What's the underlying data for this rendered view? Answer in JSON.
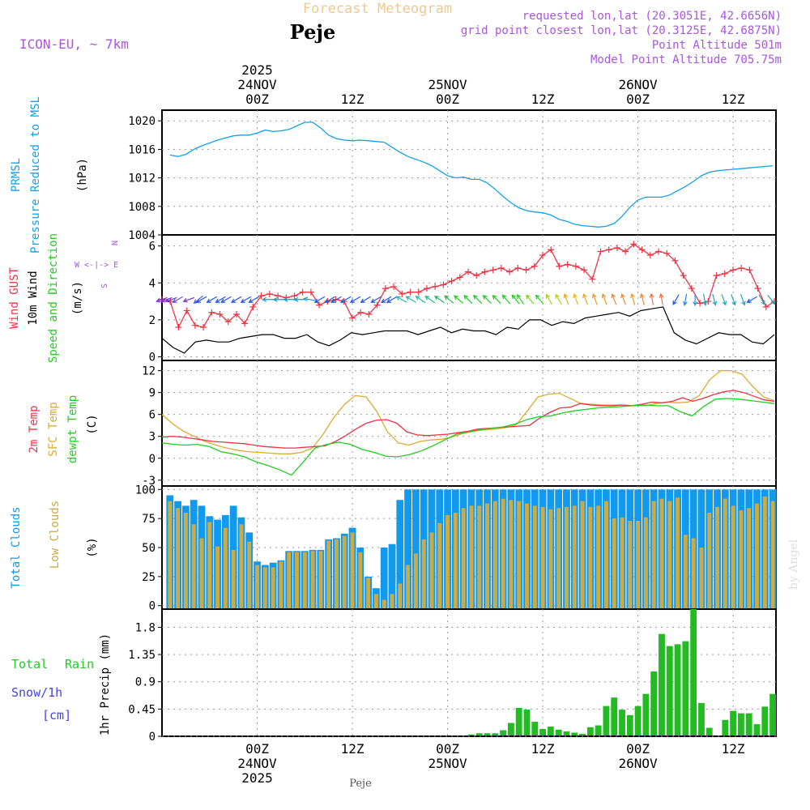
{
  "header": {
    "title": "Forecast Meteogram",
    "location": "Peje",
    "model": "ICON-EU, ~ 7km",
    "year": "2025",
    "info": [
      "requested lon,lat (20.3051E, 42.6656N)",
      "grid point closest lon,lat (20.3125E, 42.6875N)",
      "Point Altitude 501m",
      "Model Point Altitude 705.75m"
    ],
    "footer_location": "Peje",
    "credit": "by Angel"
  },
  "colors": {
    "pressure": "#11a0ee",
    "gust": "#ee3344",
    "wind": "#000000",
    "temp": "#ee3344",
    "sfc": "#ddaa33",
    "dew": "#22cc22",
    "total_cloud": "#1199ee",
    "low_cloud": "#ccaa44",
    "rain": "#22bb22",
    "label_purple": "#aa55dd",
    "title": "#f0c890"
  },
  "time_axis": {
    "ticks": [
      {
        "h": 24,
        "top": "00Z",
        "date": "24NOV",
        "year": "2025"
      },
      {
        "h": 36,
        "top": "12Z"
      },
      {
        "h": 48,
        "top": "00Z",
        "date": "25NOV"
      },
      {
        "h": 60,
        "top": "12Z"
      },
      {
        "h": 72,
        "top": "00Z",
        "date": "26NOV"
      },
      {
        "h": 84,
        "top": "12Z"
      }
    ]
  },
  "chart_data": [
    {
      "type": "line",
      "name": "pressure",
      "labels": [
        "PRMSL",
        "Pressure Reduced to MSL",
        "(hPa)"
      ],
      "ylim": [
        1004,
        1021.5
      ],
      "yticks": [
        1004,
        1008,
        1012,
        1016,
        1020
      ],
      "x": [
        13,
        14,
        15,
        16,
        17,
        18,
        19,
        20,
        21,
        22,
        23,
        24,
        25,
        26,
        27,
        28,
        29,
        30,
        31,
        32,
        33,
        34,
        35,
        36,
        37,
        38,
        39,
        40,
        41,
        42,
        43,
        44,
        45,
        46,
        47,
        48,
        49,
        50,
        51,
        52,
        53,
        54,
        55,
        56,
        57,
        58,
        59,
        60,
        61,
        62,
        63,
        64,
        65,
        66,
        67,
        68,
        69,
        70,
        71,
        72,
        73,
        74,
        75,
        76,
        77,
        78,
        79,
        80,
        81,
        82,
        83,
        84,
        85,
        86,
        87,
        88,
        89
      ],
      "values": [
        1015.2,
        1015.0,
        1015.3,
        1016.0,
        1016.5,
        1016.9,
        1017.3,
        1017.6,
        1017.9,
        1018.0,
        1018.0,
        1018.3,
        1018.7,
        1018.5,
        1018.6,
        1018.8,
        1019.3,
        1019.8,
        1019.8,
        1019.0,
        1018.0,
        1017.5,
        1017.3,
        1017.2,
        1017.3,
        1017.2,
        1017.1,
        1017.0,
        1016.3,
        1015.6,
        1015.0,
        1014.6,
        1014.2,
        1013.7,
        1013.0,
        1012.3,
        1012.0,
        1012.1,
        1011.8,
        1011.8,
        1011.3,
        1010.4,
        1009.4,
        1008.5,
        1007.8,
        1007.4,
        1007.2,
        1007.1,
        1006.8,
        1006.2,
        1005.9,
        1005.5,
        1005.3,
        1005.2,
        1005.1,
        1005.2,
        1005.6,
        1006.6,
        1007.9,
        1008.9,
        1009.3,
        1009.3,
        1009.3,
        1009.6,
        1010.2,
        1010.8,
        1011.5,
        1012.3,
        1012.8,
        1013.0,
        1013.1,
        1013.2,
        1013.3,
        1013.4,
        1013.5,
        1013.6,
        1013.7
      ]
    },
    {
      "type": "line",
      "name": "wind",
      "labels": [
        "Wind GUST",
        "10m Wind",
        "Speed and Direction",
        "(m/s)"
      ],
      "compass": [
        "N",
        "W <-|-> E",
        "S"
      ],
      "ylim": [
        -0.2,
        6.6
      ],
      "yticks": [
        0,
        2,
        4,
        6
      ],
      "gust": [
        3.1,
        3.0,
        1.6,
        2.5,
        1.7,
        1.6,
        2.4,
        2.3,
        1.9,
        2.3,
        1.8,
        2.7,
        3.3,
        3.4,
        3.3,
        3.2,
        3.3,
        3.5,
        3.5,
        2.8,
        3.0,
        3.1,
        3.0,
        2.1,
        2.4,
        2.3,
        2.8,
        3.7,
        3.8,
        3.4,
        3.5,
        3.5,
        3.7,
        3.8,
        3.9,
        4.1,
        4.3,
        4.6,
        4.4,
        4.6,
        4.7,
        4.8,
        4.6,
        4.8,
        4.7,
        4.9,
        5.5,
        5.8,
        4.9,
        5.0,
        4.9,
        4.7,
        4.2,
        5.7,
        5.8,
        5.9,
        5.7,
        6.1,
        5.8,
        5.5,
        5.7,
        5.6,
        5.2,
        4.4,
        3.7,
        2.9,
        3.0,
        4.4,
        4.5,
        4.7,
        4.8,
        4.7,
        3.7,
        2.7,
        3.0
      ],
      "wind": [
        1.0,
        0.5,
        0.2,
        0.8,
        0.9,
        0.8,
        0.8,
        1.0,
        1.1,
        1.2,
        1.2,
        1.0,
        1.0,
        1.2,
        0.8,
        0.6,
        0.9,
        1.3,
        1.2,
        1.3,
        1.4,
        1.4,
        1.4,
        1.2,
        1.4,
        1.6,
        1.3,
        1.5,
        1.4,
        1.4,
        1.2,
        1.6,
        1.5,
        2.0,
        2.0,
        1.7,
        1.9,
        1.8,
        2.1,
        2.2,
        2.3,
        2.4,
        2.2,
        2.5,
        2.6,
        2.7,
        1.3,
        0.9,
        0.7,
        1.0,
        1.3,
        1.2,
        1.2,
        0.8,
        0.7,
        1.2
      ],
      "arrows": [
        {
          "h": 12.0,
          "c": "#7733cc",
          "d": 160
        },
        {
          "h": 12.6,
          "c": "#7733cc",
          "d": 160
        },
        {
          "h": 13.2,
          "c": "#7733cc",
          "d": 160
        },
        {
          "h": 14.0,
          "c": "#5555ee",
          "d": 150
        },
        {
          "h": 15.4,
          "c": "#7733cc",
          "d": 160
        },
        {
          "h": 16.6,
          "c": "#5555ee",
          "d": 140
        },
        {
          "h": 17.0,
          "c": "#2255ee",
          "d": 150
        },
        {
          "h": 18.3,
          "c": "#2255ee",
          "d": 150
        },
        {
          "h": 19.4,
          "c": "#2255ee",
          "d": 150
        },
        {
          "h": 20.1,
          "c": "#2255ee",
          "d": 150
        },
        {
          "h": 21.4,
          "c": "#2255ee",
          "d": 150
        },
        {
          "h": 22.6,
          "c": "#2255ee",
          "d": 150
        },
        {
          "h": 23.6,
          "c": "#2255ee",
          "d": 150
        },
        {
          "h": 25.4,
          "c": "#1199cc",
          "d": 180
        },
        {
          "h": 26.8,
          "c": "#1199cc",
          "d": 180
        },
        {
          "h": 28.1,
          "c": "#1199cc",
          "d": 180
        },
        {
          "h": 29.4,
          "c": "#1199cc",
          "d": 180
        },
        {
          "h": 30.6,
          "c": "#2299dd",
          "d": 190
        },
        {
          "h": 31.9,
          "c": "#2255ee",
          "d": 150
        },
        {
          "h": 33.2,
          "c": "#2255ee",
          "d": 150
        },
        {
          "h": 34.0,
          "c": "#2255ee",
          "d": 150
        },
        {
          "h": 35.2,
          "c": "#2255ee",
          "d": 150
        },
        {
          "h": 36.4,
          "c": "#2255ee",
          "d": 150
        },
        {
          "h": 37.7,
          "c": "#2255ee",
          "d": 150
        },
        {
          "h": 39.0,
          "c": "#2255ee",
          "d": 150
        },
        {
          "h": 40.3,
          "c": "#2255ee",
          "d": 150
        },
        {
          "h": 41.0,
          "c": "#2255ee",
          "d": 150
        },
        {
          "h": 42.2,
          "c": "#22bbaa",
          "d": 210
        },
        {
          "h": 43.4,
          "c": "#22bbaa",
          "d": 210
        },
        {
          "h": 44.6,
          "c": "#22bbaa",
          "d": 215
        },
        {
          "h": 45.8,
          "c": "#22bb88",
          "d": 215
        },
        {
          "h": 47.0,
          "c": "#22bb66",
          "d": 215
        },
        {
          "h": 48.2,
          "c": "#22bb44",
          "d": 220
        },
        {
          "h": 49.4,
          "c": "#22cc22",
          "d": 220
        },
        {
          "h": 50.6,
          "c": "#22cc22",
          "d": 225
        },
        {
          "h": 51.8,
          "c": "#22cc22",
          "d": 225
        },
        {
          "h": 53.0,
          "c": "#22cc22",
          "d": 225
        },
        {
          "h": 54.2,
          "c": "#22cc22",
          "d": 225
        },
        {
          "h": 55.4,
          "c": "#22cc22",
          "d": 230
        },
        {
          "h": 56.6,
          "c": "#22cc22",
          "d": 230
        },
        {
          "h": 57.2,
          "c": "#33cc33",
          "d": 235
        },
        {
          "h": 58.4,
          "c": "#88cc22",
          "d": 230
        },
        {
          "h": 59.6,
          "c": "#22cc22",
          "d": 230
        },
        {
          "h": 60.8,
          "c": "#aacc22",
          "d": 240
        },
        {
          "h": 62.0,
          "c": "#bbcc22",
          "d": 240
        },
        {
          "h": 63.0,
          "c": "#ddaa22",
          "d": 250
        },
        {
          "h": 64.2,
          "c": "#ddbb22",
          "d": 250
        },
        {
          "h": 65.4,
          "c": "#ddaa22",
          "d": 250
        },
        {
          "h": 66.6,
          "c": "#ee9922",
          "d": 250
        },
        {
          "h": 67.8,
          "c": "#ee9922",
          "d": 250
        },
        {
          "h": 69.0,
          "c": "#ee8833",
          "d": 250
        },
        {
          "h": 70.2,
          "c": "#ee8833",
          "d": 250
        },
        {
          "h": 71.4,
          "c": "#ee9922",
          "d": 255
        },
        {
          "h": 72.6,
          "c": "#ee8833",
          "d": 255
        },
        {
          "h": 73.8,
          "c": "#ee7744",
          "d": 260
        },
        {
          "h": 75.0,
          "c": "#ee7744",
          "d": 260
        },
        {
          "h": 76.8,
          "c": "#2255ee",
          "d": 120
        },
        {
          "h": 78.0,
          "c": "#2288dd",
          "d": 100
        },
        {
          "h": 79.2,
          "c": "#2299cc",
          "d": 90
        },
        {
          "h": 80.4,
          "c": "#22aabb",
          "d": 80
        },
        {
          "h": 81.6,
          "c": "#22aabb",
          "d": 75
        },
        {
          "h": 82.8,
          "c": "#22aaaa",
          "d": 70
        },
        {
          "h": 84.0,
          "c": "#22aaaa",
          "d": 70
        },
        {
          "h": 85.2,
          "c": "#22aaaa",
          "d": 70
        },
        {
          "h": 86.4,
          "c": "#2255ee",
          "d": 150
        },
        {
          "h": 87.6,
          "c": "#22aaaa",
          "d": 60
        },
        {
          "h": 88.8,
          "c": "#22aaaa",
          "d": 50
        }
      ]
    },
    {
      "type": "line",
      "name": "temperature",
      "labels": [
        "2m Temp",
        "SFC Temp",
        "dewpt Temp",
        "(C)"
      ],
      "ylim": [
        -3.8,
        13.4
      ],
      "yticks": [
        -3,
        0,
        3,
        6,
        9,
        12
      ],
      "x": [
        0,
        1,
        2,
        3,
        4,
        5,
        6,
        7,
        8,
        9,
        10,
        11,
        12,
        13,
        14,
        15,
        16,
        17,
        18,
        19,
        20,
        21,
        22,
        23,
        24,
        25,
        26,
        27,
        28,
        29,
        30,
        31,
        32,
        33,
        34,
        35,
        36,
        37,
        38,
        39,
        40,
        41,
        42,
        43,
        44,
        45,
        46,
        47,
        48,
        49,
        50,
        51,
        52,
        53,
        54,
        55,
        56,
        57,
        58,
        59,
        60,
        61,
        62,
        63,
        64,
        65,
        66,
        67,
        68,
        69,
        70,
        71,
        72,
        73,
        74,
        75,
        76
      ],
      "temp2m": [
        2.9,
        3.0,
        2.9,
        2.7,
        2.5,
        2.3,
        2.2,
        2.1,
        2.0,
        1.8,
        1.6,
        1.5,
        1.4,
        1.4,
        1.5,
        1.6,
        1.7,
        2.3,
        3.1,
        4.0,
        4.8,
        5.2,
        5.3,
        4.8,
        3.6,
        3.2,
        3.1,
        3.2,
        3.3,
        3.5,
        3.7,
        4.0,
        4.1,
        4.2,
        4.3,
        4.4,
        4.5,
        5.5,
        6.3,
        6.9,
        7.0,
        7.5,
        7.3,
        7.2,
        7.2,
        7.3,
        7.2,
        7.4,
        7.7,
        7.6,
        7.8,
        8.3,
        7.8,
        8.2,
        8.7,
        9.1,
        9.3,
        9.0,
        8.5,
        8.0,
        7.8
      ],
      "sfc": [
        6.0,
        4.7,
        3.7,
        3.0,
        2.3,
        1.8,
        1.4,
        1.1,
        0.9,
        0.8,
        0.7,
        0.6,
        0.6,
        0.8,
        1.4,
        3.3,
        5.6,
        7.4,
        8.6,
        8.4,
        6.4,
        3.6,
        2.1,
        1.8,
        2.3,
        2.5,
        2.6,
        2.9,
        3.4,
        3.7,
        3.9,
        4.0,
        4.2,
        4.6,
        6.5,
        8.4,
        8.8,
        8.9,
        8.2,
        7.5,
        7.4,
        7.3,
        7.3,
        7.3,
        7.2,
        7.2,
        7.5,
        7.7,
        7.6,
        7.7,
        8.6,
        10.8,
        12.0,
        12.0,
        11.5,
        9.8,
        8.4,
        7.9
      ],
      "dew": [
        2.1,
        1.9,
        1.8,
        1.9,
        1.6,
        0.9,
        0.6,
        0.2,
        -0.5,
        -1.0,
        -1.6,
        -2.3,
        -0.5,
        1.4,
        1.9,
        2.2,
        1.9,
        1.2,
        0.8,
        0.3,
        0.2,
        0.5,
        1.0,
        1.7,
        2.5,
        3.3,
        3.6,
        3.9,
        4.1,
        4.3,
        4.7,
        5.3,
        5.7,
        5.8,
        6.2,
        6.5,
        6.7,
        6.9,
        7.0,
        7.1,
        7.2,
        7.3,
        7.2,
        7.2,
        6.4,
        5.8,
        7.1,
        8.1,
        8.2,
        8.1,
        7.9,
        7.7,
        7.5
      ]
    },
    {
      "type": "bar",
      "name": "clouds",
      "labels": [
        "Total Clouds",
        "Low Clouds",
        "(%)"
      ],
      "ylim": [
        -3,
        103
      ],
      "yticks": [
        0,
        25,
        50,
        75,
        100
      ],
      "x": [
        13,
        14,
        15,
        16,
        17,
        18,
        19,
        20,
        21,
        22,
        23,
        24,
        25,
        26,
        27,
        28,
        29,
        30,
        31,
        32,
        33,
        34,
        35,
        36,
        37,
        38,
        39,
        40,
        41,
        42,
        43,
        44,
        45,
        46,
        47,
        48,
        49,
        50,
        51,
        52,
        53,
        54,
        55,
        56,
        57,
        58,
        59,
        60,
        61,
        62,
        63,
        64,
        65,
        66,
        67,
        68,
        69,
        70,
        71,
        72,
        73,
        74,
        75,
        76,
        77,
        78,
        79,
        80,
        81,
        82,
        83,
        84,
        85,
        86,
        87,
        88,
        89
      ],
      "total": [
        95,
        90,
        86,
        91,
        86,
        77,
        74,
        78,
        86,
        76,
        63,
        38,
        35,
        37,
        39,
        47,
        47,
        47,
        48,
        48,
        57,
        58,
        62,
        67,
        50,
        25,
        15,
        50,
        53,
        91,
        100,
        100,
        100,
        100,
        100,
        100,
        100,
        100,
        100,
        100,
        100,
        100,
        100,
        100,
        100,
        100,
        100,
        100,
        100,
        100,
        100,
        100,
        100,
        100,
        100,
        100,
        100,
        100,
        100,
        100,
        100,
        100,
        100,
        100,
        100,
        100,
        100,
        100,
        100,
        100,
        100,
        100,
        100,
        100,
        100,
        100,
        100
      ],
      "low": [
        90,
        84,
        80,
        70,
        58,
        72,
        51,
        67,
        48,
        70,
        55,
        35,
        33,
        33,
        38,
        46,
        46,
        46,
        47,
        47,
        56,
        57,
        60,
        63,
        46,
        24,
        10,
        5,
        10,
        19,
        35,
        45,
        57,
        63,
        71,
        78,
        80,
        84,
        86,
        86,
        88,
        90,
        92,
        91,
        90,
        88,
        86,
        85,
        83,
        84,
        85,
        86,
        90,
        85,
        86,
        90,
        75,
        76,
        73,
        73,
        76,
        90,
        92,
        90,
        93,
        61,
        58,
        50,
        80,
        85,
        92,
        86,
        82,
        84,
        88,
        94,
        90
      ]
    },
    {
      "type": "bar",
      "name": "precipitation",
      "labels": [
        "Total",
        "Rain",
        "Snow/1h",
        "[cm]",
        "1hr Precip (mm)"
      ],
      "ylim": [
        0,
        2.1
      ],
      "yticks": [
        0,
        0.45,
        0.9,
        1.35,
        1.8
      ],
      "ytick_labels": [
        "0",
        "0.45",
        "0.9",
        "1.35",
        "1.8"
      ],
      "x": [
        51,
        52,
        53,
        54,
        55,
        56,
        57,
        58,
        59,
        60,
        61,
        62,
        63,
        64,
        65,
        66,
        67,
        68,
        69,
        70,
        71,
        72,
        73,
        74,
        75,
        76,
        77,
        78,
        79,
        80,
        81,
        82,
        83,
        84,
        85,
        86,
        87,
        88,
        89
      ],
      "values": [
        0.03,
        0.05,
        0.05,
        0.05,
        0.1,
        0.22,
        0.47,
        0.44,
        0.24,
        0.12,
        0.16,
        0.11,
        0.08,
        0.06,
        0.04,
        0.15,
        0.18,
        0.5,
        0.64,
        0.44,
        0.35,
        0.5,
        0.7,
        1.07,
        1.69,
        1.49,
        1.52,
        1.57,
        2.1,
        0.55,
        0.14,
        0.01,
        0.27,
        0.42,
        0.38,
        0.38,
        0.2,
        0.49,
        0.7
      ]
    }
  ]
}
